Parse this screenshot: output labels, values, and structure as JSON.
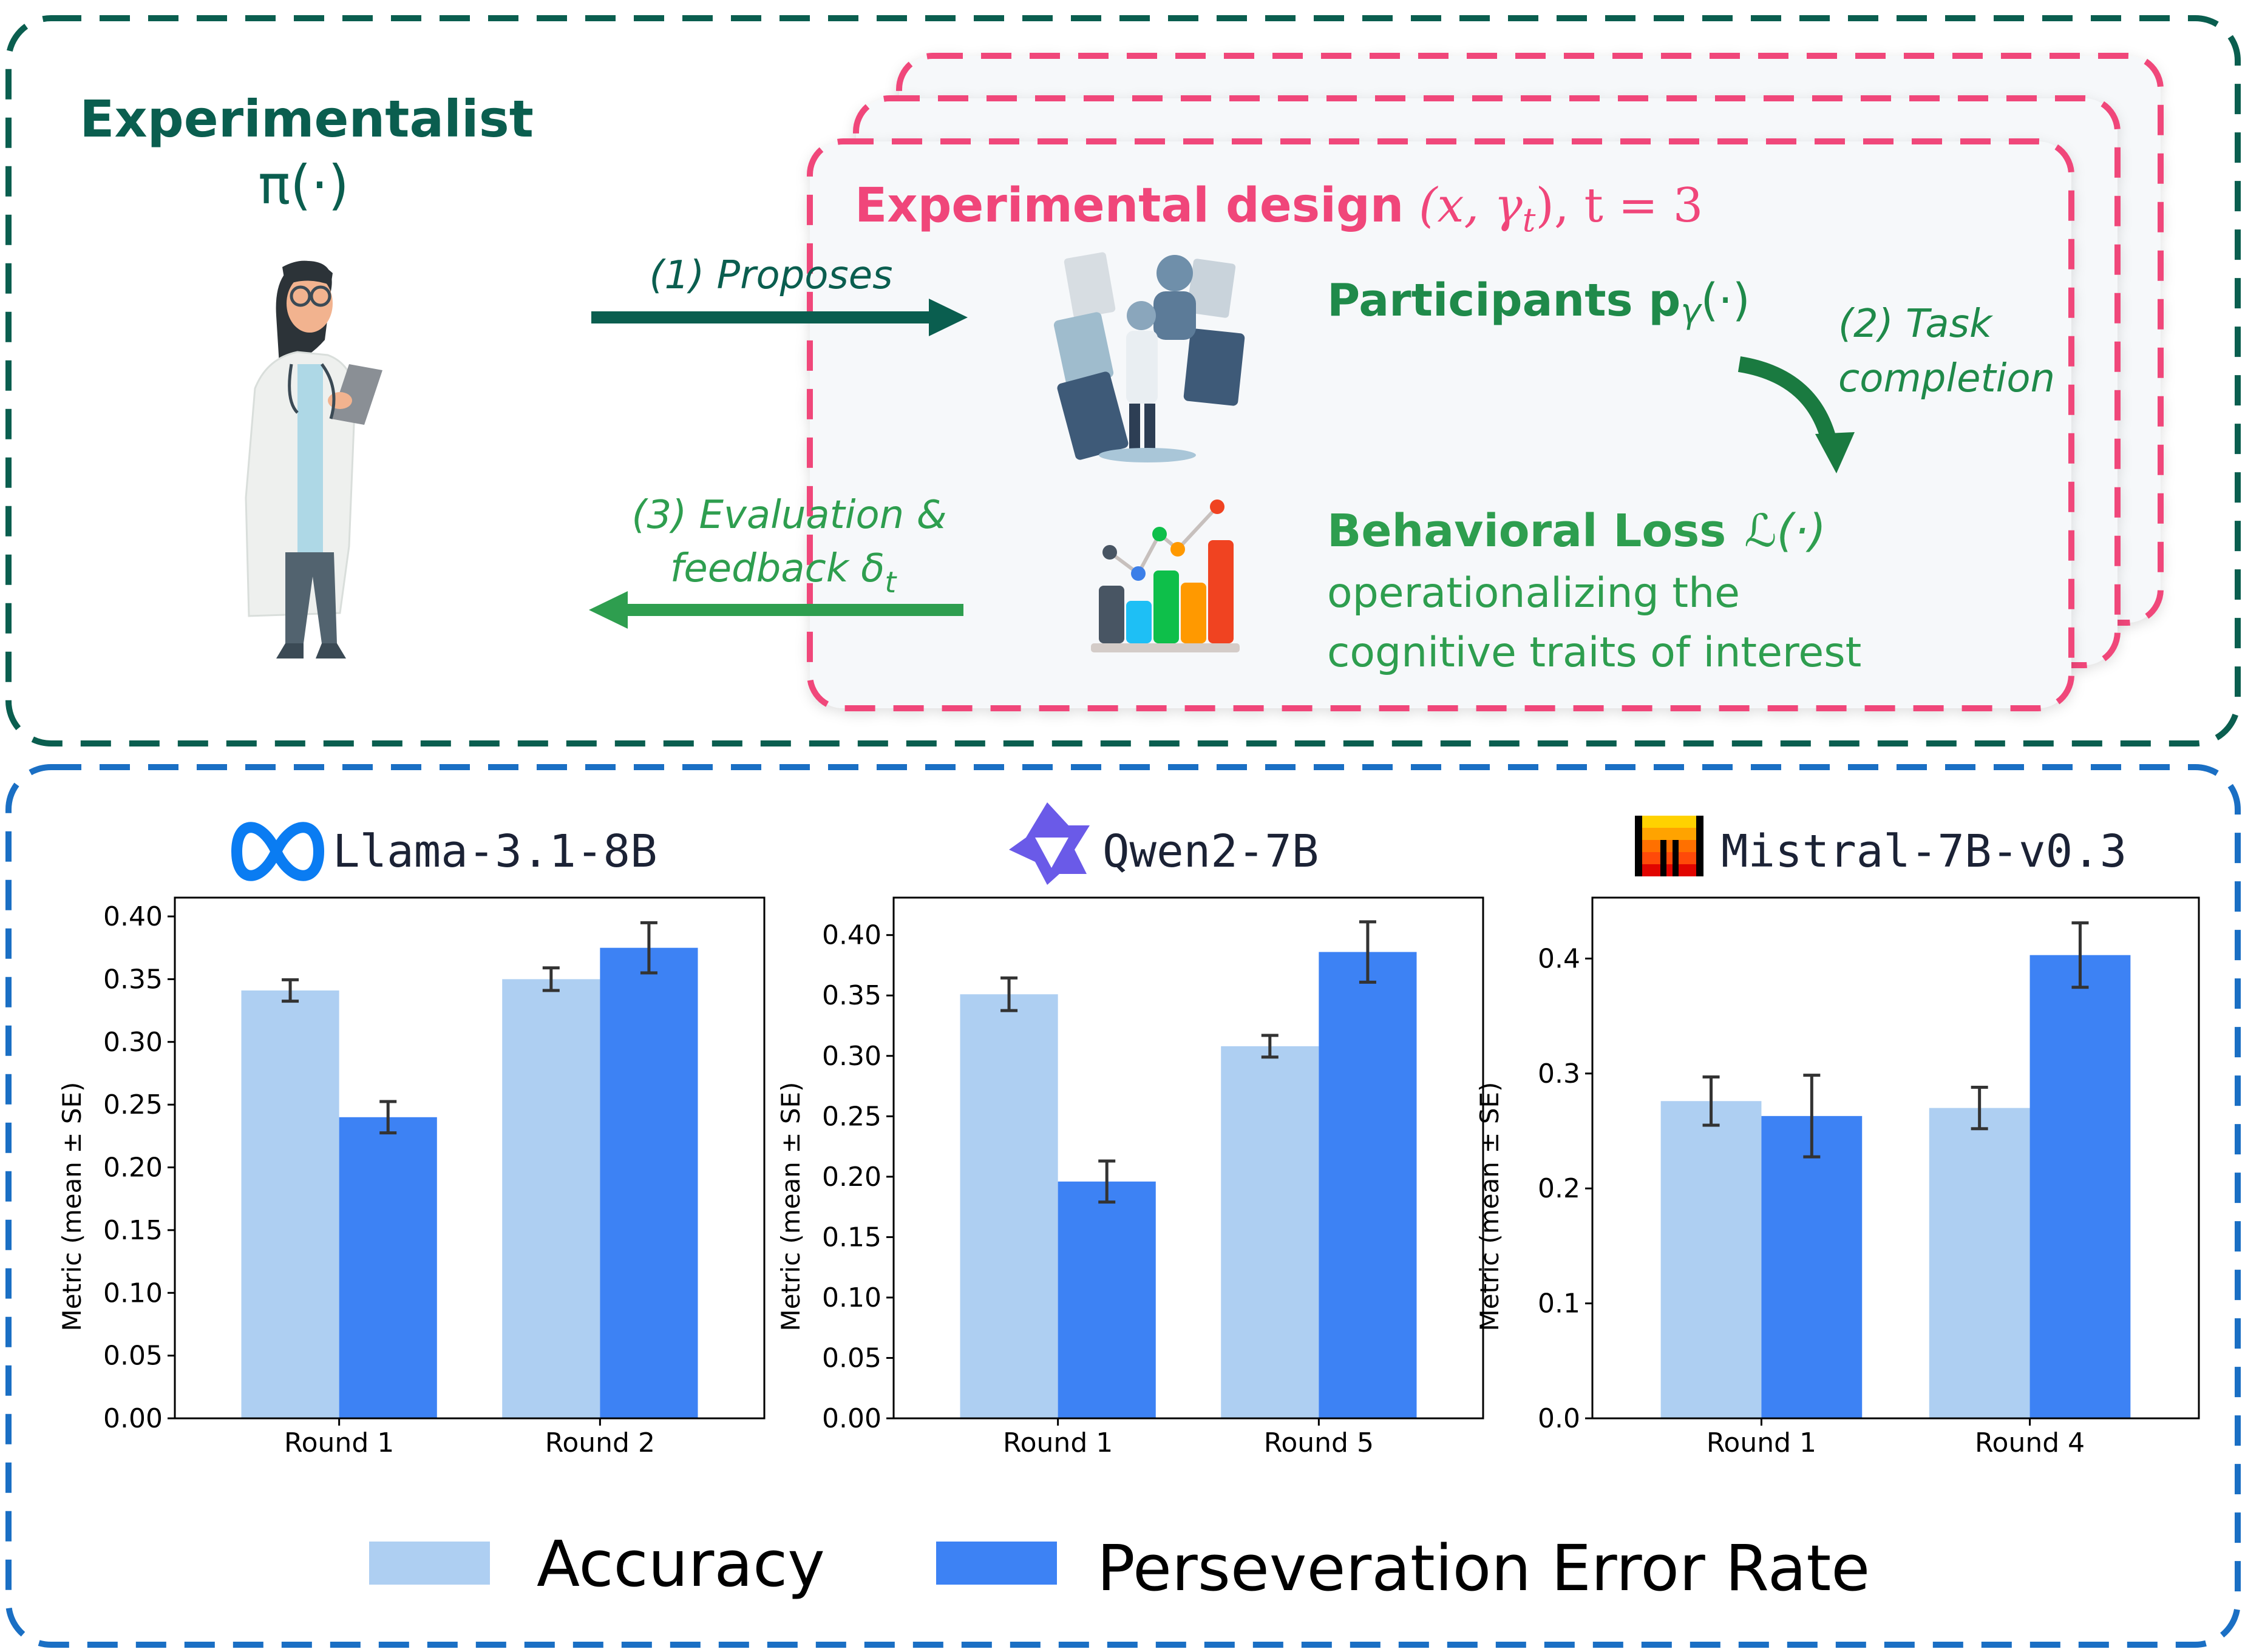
{
  "top": {
    "experimentalist": {
      "title": "Experimentalist",
      "symbol": "π(·)"
    },
    "propose_label": "(1) Proposes",
    "feedback_label_line1": "(3) Evaluation &",
    "feedback_label_line2": "feedback δ",
    "feedback_sub": "t",
    "design_card": {
      "title": "Experimental design",
      "math": "(x, γ",
      "math_sub": "t",
      "math_end": "),  t = 3",
      "participants": "Participants p",
      "participants_sub": "γ",
      "participants_end": "(·)",
      "task_line1": "(2) Task",
      "task_line2": "completion",
      "loss_title": "Behavioral Loss",
      "loss_symbol": "ℒ(·)",
      "loss_desc_line1": "operationalizing the",
      "loss_desc_line2": "cognitive traits of interest"
    },
    "colors": {
      "dark_green": "#0a5e4f",
      "green": "#2e9e4f",
      "pink": "#f0467a",
      "blue_border": "#1a6fc4"
    }
  },
  "legend": {
    "items": [
      {
        "label": "Accuracy",
        "color": "#aecff2"
      },
      {
        "label": "Perseveration Error Rate",
        "color": "#3d82f4"
      }
    ]
  },
  "chart_data": [
    {
      "type": "bar",
      "title": "Llama-3.1-8B",
      "logo": "meta-infinity-logo",
      "ylabel": "Metric (mean ± SE)",
      "xlabel": "",
      "categories": [
        "Round 1",
        "Round 2"
      ],
      "ylim": [
        0,
        0.415
      ],
      "yticks": [
        "0.00",
        "0.05",
        "0.10",
        "0.15",
        "0.20",
        "0.25",
        "0.30",
        "0.35",
        "0.40"
      ],
      "series": [
        {
          "name": "Accuracy",
          "values": [
            0.341,
            0.35
          ],
          "se": [
            0.0085,
            0.009
          ]
        },
        {
          "name": "Perseveration Error Rate",
          "values": [
            0.24,
            0.375
          ],
          "se": [
            0.0125,
            0.02
          ]
        }
      ]
    },
    {
      "type": "bar",
      "title": "Qwen2-7B",
      "logo": "qwen-star-logo",
      "ylabel": "Metric (mean ± SE)",
      "xlabel": "",
      "categories": [
        "Round 1",
        "Round 5"
      ],
      "ylim": [
        0,
        0.431
      ],
      "yticks": [
        "0.00",
        "0.05",
        "0.10",
        "0.15",
        "0.20",
        "0.25",
        "0.30",
        "0.35",
        "0.40"
      ],
      "series": [
        {
          "name": "Accuracy",
          "values": [
            0.351,
            0.308
          ],
          "se": [
            0.0135,
            0.009
          ]
        },
        {
          "name": "Perseveration Error Rate",
          "values": [
            0.196,
            0.386
          ],
          "se": [
            0.017,
            0.025
          ]
        }
      ]
    },
    {
      "type": "bar",
      "title": "Mistral-7B-v0.3",
      "logo": "mistral-m-logo",
      "ylabel": "Metric (mean ± SE)",
      "xlabel": "",
      "categories": [
        "Round 1",
        "Round 4"
      ],
      "ylim": [
        0,
        0.453
      ],
      "yticks": [
        "0.0",
        "0.1",
        "0.2",
        "0.3",
        "0.4"
      ],
      "series": [
        {
          "name": "Accuracy",
          "values": [
            0.276,
            0.27
          ],
          "se": [
            0.021,
            0.018
          ]
        },
        {
          "name": "Perseveration Error Rate",
          "values": [
            0.263,
            0.403
          ],
          "se": [
            0.0355,
            0.028
          ]
        }
      ]
    }
  ]
}
